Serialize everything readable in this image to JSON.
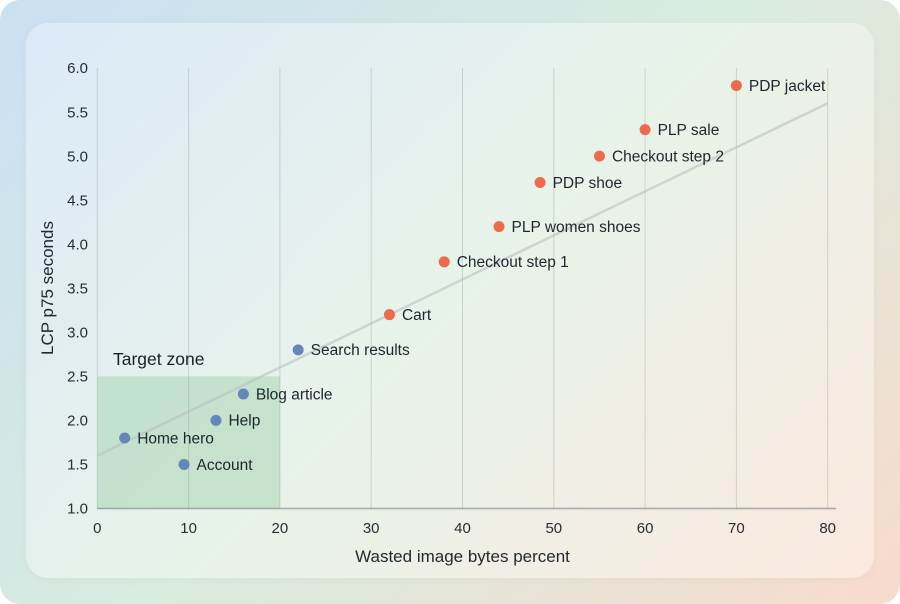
{
  "chart_data": {
    "type": "scatter",
    "title": "",
    "xlabel": "Wasted image bytes percent",
    "ylabel": "LCP p75 seconds",
    "xlim": [
      0,
      80
    ],
    "ylim": [
      1.0,
      6.0
    ],
    "xticks": [
      0,
      10,
      20,
      30,
      40,
      50,
      60,
      70,
      80
    ],
    "yticks": [
      1.0,
      1.5,
      2.0,
      2.5,
      3.0,
      3.5,
      4.0,
      4.5,
      5.0,
      5.5,
      6.0
    ],
    "grid": "vertical-only",
    "legend": "none",
    "series_colors": {
      "within_target": "#6586b8",
      "over_target": "#ee6a4e"
    },
    "points": [
      {
        "label": "Home hero",
        "x": 3,
        "y": 1.8,
        "series": "within_target"
      },
      {
        "label": "Account",
        "x": 9.5,
        "y": 1.5,
        "series": "within_target"
      },
      {
        "label": "Help",
        "x": 13,
        "y": 2.0,
        "series": "within_target"
      },
      {
        "label": "Blog article",
        "x": 16,
        "y": 2.3,
        "series": "within_target"
      },
      {
        "label": "Search results",
        "x": 22,
        "y": 2.8,
        "series": "within_target"
      },
      {
        "label": "Cart",
        "x": 32,
        "y": 3.2,
        "series": "over_target"
      },
      {
        "label": "Checkout step 1",
        "x": 38,
        "y": 3.8,
        "series": "over_target"
      },
      {
        "label": "PLP women shoes",
        "x": 44,
        "y": 4.2,
        "series": "over_target"
      },
      {
        "label": "PDP shoe",
        "x": 48.5,
        "y": 4.7,
        "series": "over_target"
      },
      {
        "label": "Checkout step 2",
        "x": 55,
        "y": 5.0,
        "series": "over_target"
      },
      {
        "label": "PLP sale",
        "x": 60,
        "y": 5.3,
        "series": "over_target"
      },
      {
        "label": "PDP jacket",
        "x": 70,
        "y": 5.8,
        "series": "over_target"
      }
    ],
    "trend_line": {
      "x1": 0,
      "y1": 1.6,
      "x2": 80,
      "y2": 5.6,
      "color": "#b9bfc3"
    },
    "target_zone": {
      "label": "Target zone",
      "x_range": [
        0,
        20
      ],
      "y_range": [
        1.0,
        2.5
      ],
      "fill": "#8fc79b",
      "opacity": 0.38
    }
  }
}
